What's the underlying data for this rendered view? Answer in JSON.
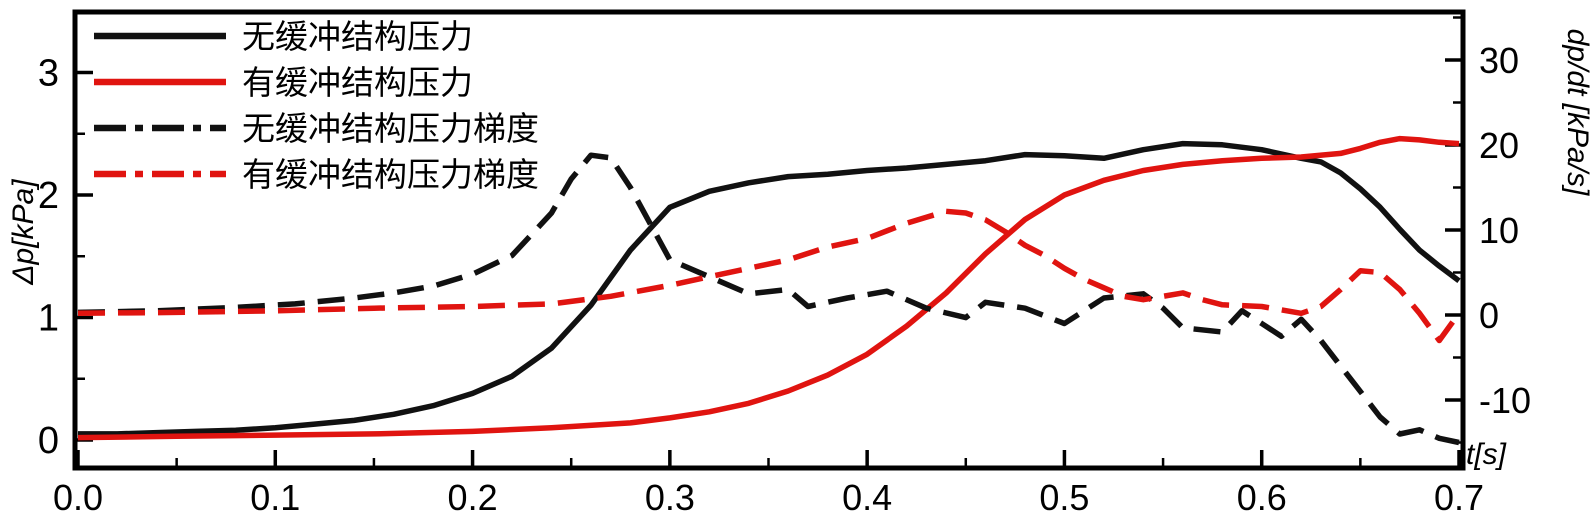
{
  "chart_data": {
    "type": "line",
    "title": "",
    "xlabel": "t[s]",
    "ylabel_left": "Δp[kPa]",
    "ylabel_right": "dp/dt [kPa/s]",
    "x_range": [
      0,
      0.7
    ],
    "y_left_range": [
      0,
      3
    ],
    "y_right_range": [
      -10,
      30
    ],
    "grid": false,
    "legend_position": "top-left",
    "x_ticks": {
      "major": [
        0,
        0.1,
        0.2,
        0.3,
        0.4,
        0.5,
        0.6,
        0.7
      ],
      "labels": [
        "0.0",
        "0.1",
        "0.2",
        "0.3",
        "0.4",
        "0.5",
        "0.6",
        "0.7"
      ],
      "minor": [
        0.05,
        0.15,
        0.25,
        0.35,
        0.45,
        0.55,
        0.65
      ]
    },
    "y_left_ticks": {
      "major": [
        0,
        1,
        2,
        3
      ],
      "labels": [
        "0",
        "1",
        "2",
        "3"
      ],
      "minor": [
        0.5,
        1.5,
        2.5
      ]
    },
    "y_right_ticks": {
      "major": [
        -10,
        0,
        10,
        20,
        30
      ],
      "labels": [
        "-10",
        "0",
        "10",
        "20",
        "30"
      ],
      "minor": [
        -15,
        -5,
        5,
        15,
        25,
        35
      ]
    },
    "series": [
      {
        "id": "no-buffer-pressure",
        "name": "无缓冲结构压力",
        "color": "#111111",
        "style": "solid",
        "axis": "left",
        "x": [
          0,
          0.02,
          0.04,
          0.06,
          0.08,
          0.1,
          0.12,
          0.14,
          0.16,
          0.18,
          0.2,
          0.22,
          0.24,
          0.26,
          0.28,
          0.3,
          0.32,
          0.34,
          0.36,
          0.38,
          0.4,
          0.42,
          0.44,
          0.46,
          0.48,
          0.5,
          0.52,
          0.54,
          0.56,
          0.58,
          0.6,
          0.62,
          0.63,
          0.64,
          0.65,
          0.66,
          0.67,
          0.68,
          0.69,
          0.7
        ],
        "y": [
          0.05,
          0.05,
          0.06,
          0.07,
          0.08,
          0.1,
          0.13,
          0.16,
          0.21,
          0.28,
          0.38,
          0.52,
          0.75,
          1.1,
          1.55,
          1.9,
          2.03,
          2.1,
          2.15,
          2.17,
          2.2,
          2.22,
          2.25,
          2.28,
          2.33,
          2.32,
          2.3,
          2.37,
          2.42,
          2.41,
          2.37,
          2.3,
          2.27,
          2.18,
          2.05,
          1.9,
          1.72,
          1.55,
          1.42,
          1.3
        ]
      },
      {
        "id": "buffer-pressure",
        "name": "有缓冲结构压力",
        "color": "#e01410",
        "style": "solid",
        "axis": "left",
        "x": [
          0,
          0.05,
          0.1,
          0.15,
          0.2,
          0.24,
          0.28,
          0.3,
          0.32,
          0.34,
          0.36,
          0.38,
          0.4,
          0.42,
          0.44,
          0.46,
          0.48,
          0.5,
          0.52,
          0.54,
          0.56,
          0.58,
          0.6,
          0.62,
          0.64,
          0.65,
          0.66,
          0.67,
          0.68,
          0.69,
          0.7
        ],
        "y": [
          0.02,
          0.03,
          0.04,
          0.05,
          0.07,
          0.1,
          0.14,
          0.18,
          0.23,
          0.3,
          0.4,
          0.53,
          0.7,
          0.93,
          1.2,
          1.52,
          1.8,
          2.0,
          2.12,
          2.2,
          2.25,
          2.28,
          2.3,
          2.31,
          2.34,
          2.38,
          2.43,
          2.46,
          2.45,
          2.43,
          2.42
        ]
      },
      {
        "id": "no-buffer-pressure-gradient",
        "name": "无缓冲结构压力梯度",
        "color": "#111111",
        "style": "dashed",
        "axis": "right",
        "x": [
          0,
          0.04,
          0.08,
          0.11,
          0.14,
          0.16,
          0.18,
          0.2,
          0.22,
          0.24,
          0.25,
          0.26,
          0.27,
          0.28,
          0.3,
          0.32,
          0.34,
          0.36,
          0.37,
          0.39,
          0.41,
          0.43,
          0.45,
          0.46,
          0.48,
          0.5,
          0.52,
          0.54,
          0.55,
          0.56,
          0.58,
          0.59,
          0.6,
          0.61,
          0.62,
          0.63,
          0.64,
          0.65,
          0.66,
          0.67,
          0.68,
          0.69,
          0.7
        ],
        "y": [
          0.3,
          0.5,
          0.9,
          1.3,
          2.0,
          2.6,
          3.4,
          4.8,
          7,
          12,
          16,
          18.8,
          18.5,
          15,
          6.5,
          4.5,
          2.5,
          3,
          1,
          2,
          2.8,
          0.8,
          -0.3,
          1.5,
          0.8,
          -1,
          2,
          2.5,
          0.8,
          -1.5,
          -2,
          0.5,
          -1,
          -2.5,
          -0.5,
          -3,
          -6,
          -9,
          -12,
          -14,
          -13.5,
          -14.5,
          -15
        ]
      },
      {
        "id": "buffer-pressure-gradient",
        "name": "有缓冲结构压力梯度",
        "color": "#e01410",
        "style": "dashed",
        "axis": "right",
        "x": [
          0,
          0.05,
          0.1,
          0.15,
          0.2,
          0.24,
          0.27,
          0.3,
          0.32,
          0.34,
          0.36,
          0.38,
          0.4,
          0.42,
          0.43,
          0.44,
          0.45,
          0.46,
          0.47,
          0.48,
          0.49,
          0.5,
          0.51,
          0.52,
          0.53,
          0.54,
          0.55,
          0.56,
          0.57,
          0.58,
          0.6,
          0.61,
          0.62,
          0.63,
          0.64,
          0.65,
          0.66,
          0.67,
          0.68,
          0.69,
          0.7
        ],
        "y": [
          0.2,
          0.3,
          0.5,
          0.8,
          1.0,
          1.3,
          2.2,
          3.5,
          4.5,
          5.5,
          6.5,
          8.0,
          9.0,
          10.8,
          11.5,
          12.2,
          12.0,
          11.2,
          9.8,
          8.2,
          7.0,
          5.5,
          4.2,
          3.2,
          2.2,
          1.8,
          2.2,
          2.6,
          1.8,
          1.2,
          1.0,
          0.6,
          0.2,
          1.0,
          3.0,
          5.2,
          5.0,
          3.0,
          0.2,
          -3.0,
          0.2
        ]
      }
    ]
  },
  "colors": {
    "axis": "#000000",
    "black_series": "#111111",
    "red_series": "#e01410"
  }
}
